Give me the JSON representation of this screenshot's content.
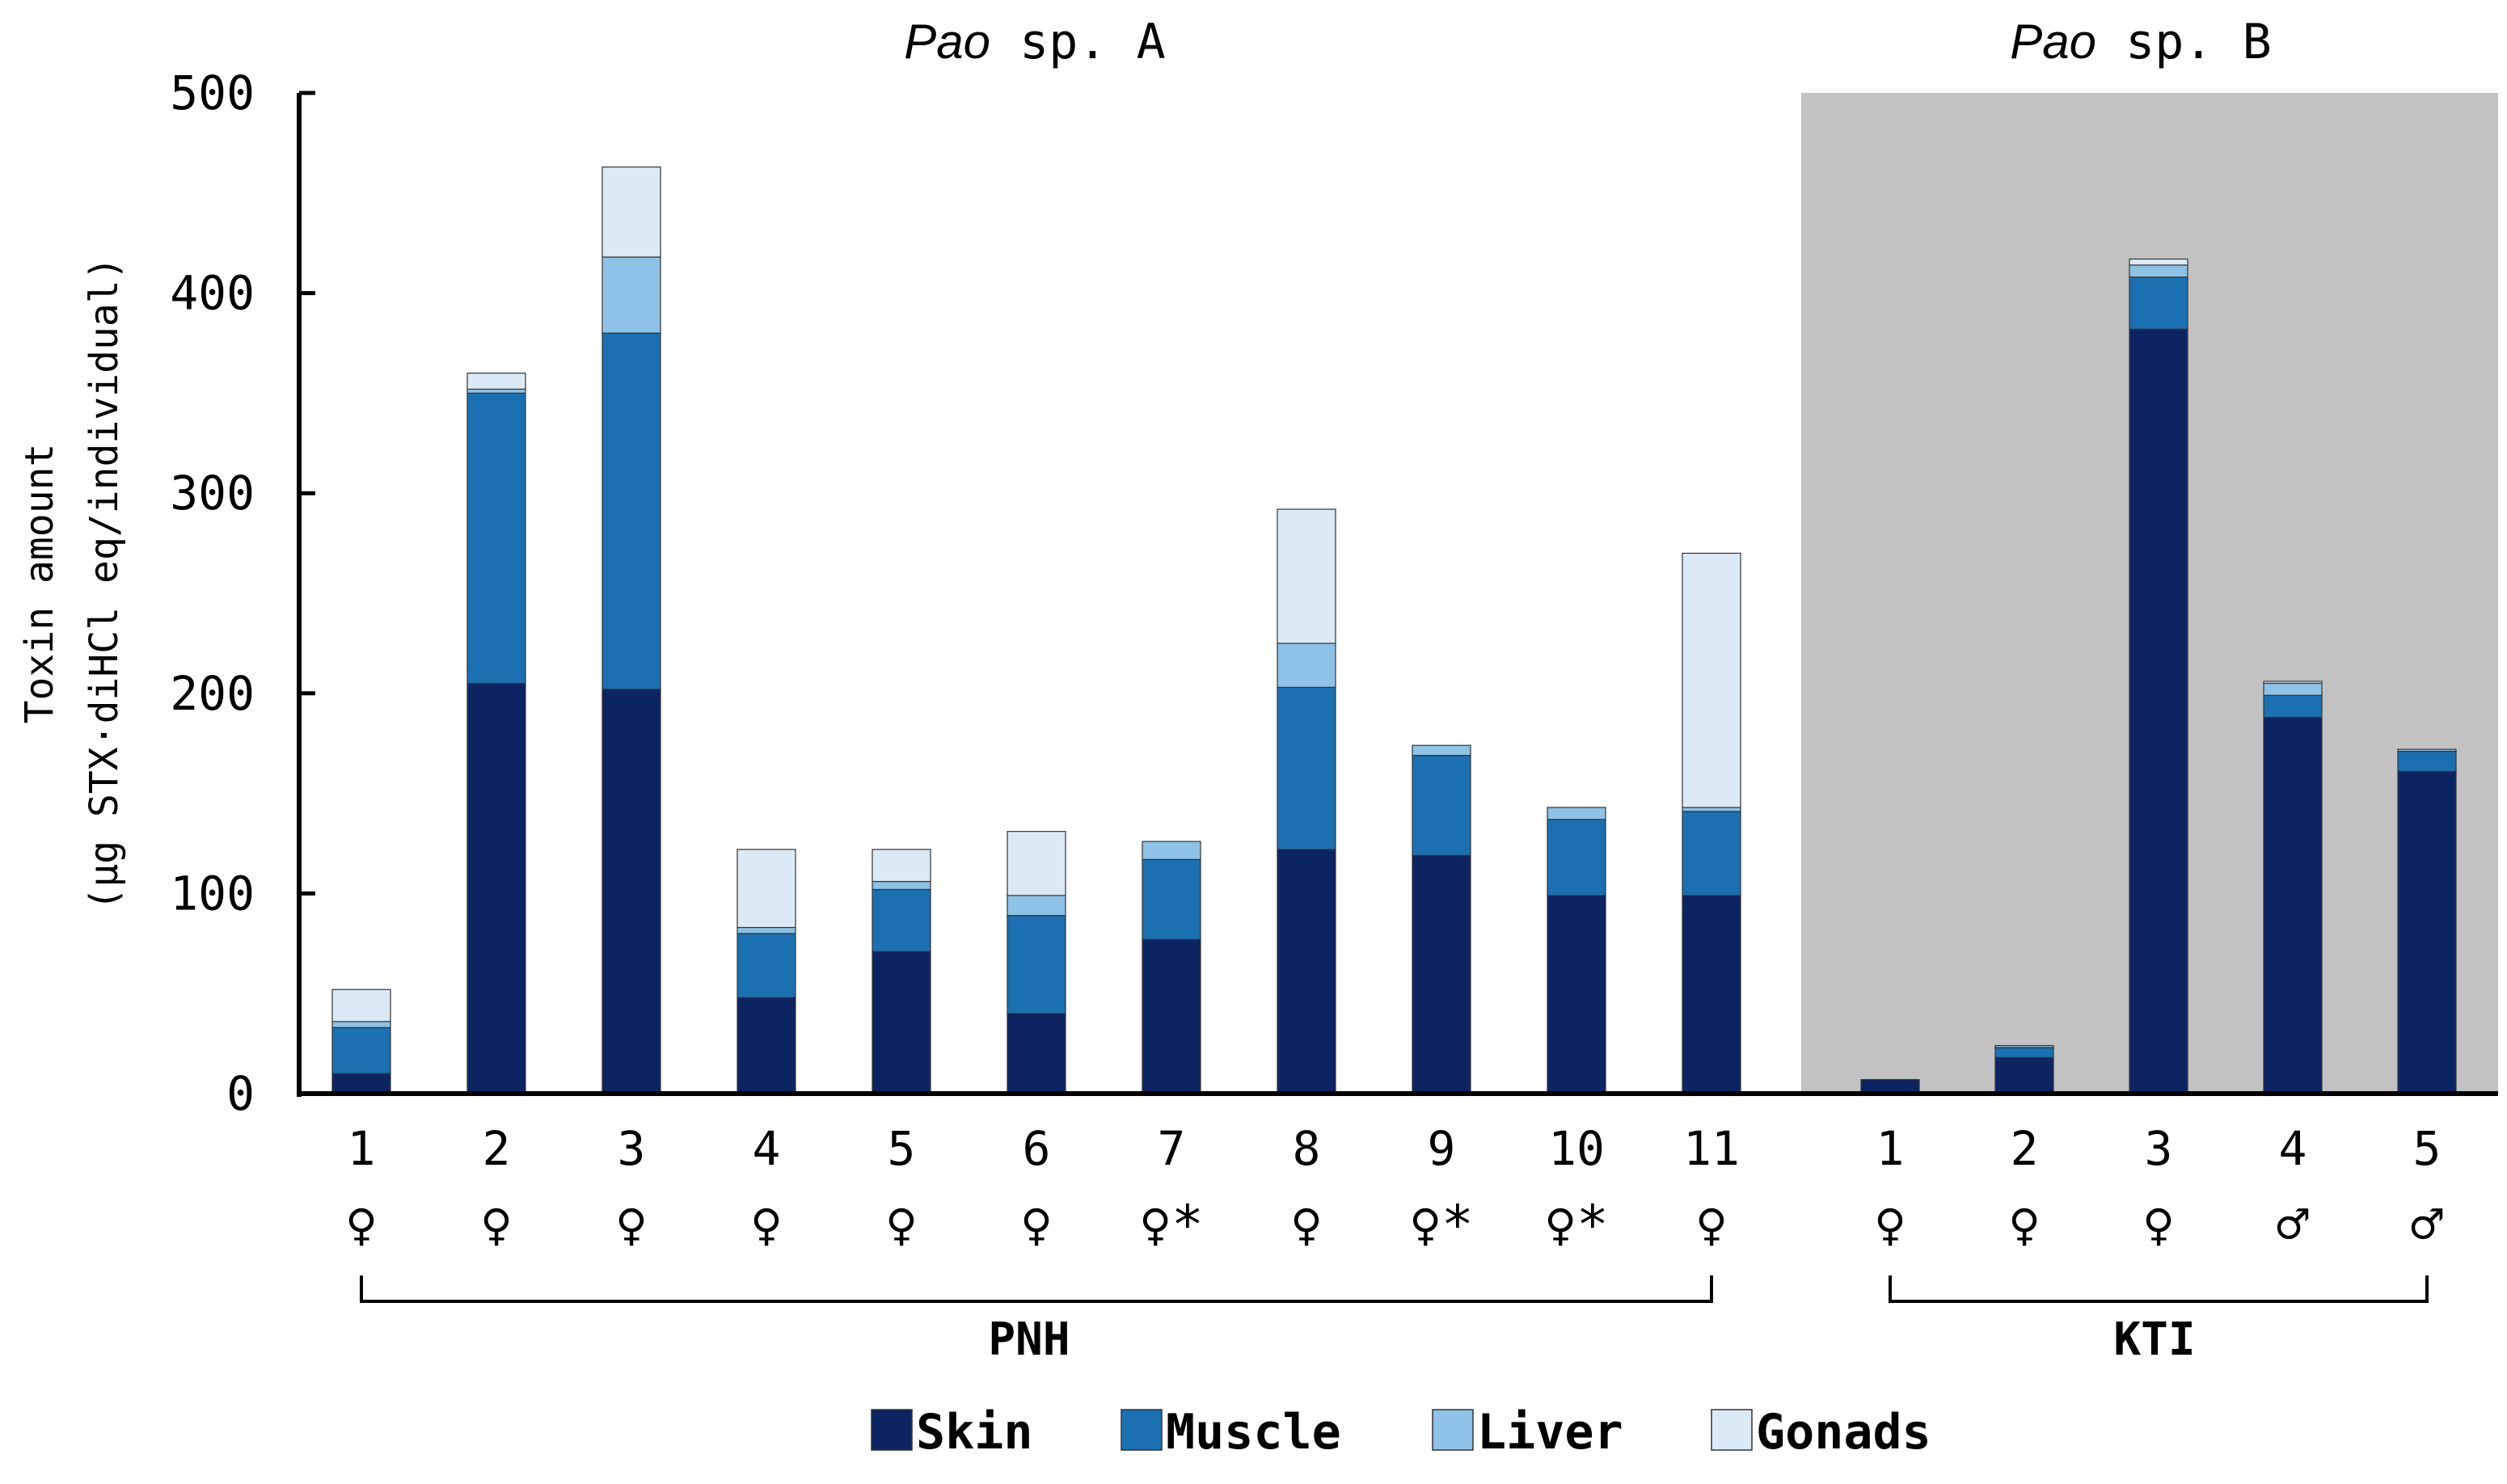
{
  "chart_data": {
    "type": "bar",
    "stacked": true,
    "ylabel_line1": "Toxin amount",
    "ylabel_line2": "(µg STX·diHCl eq/individual)",
    "ylim": [
      0,
      500
    ],
    "yticks": [
      0,
      100,
      200,
      300,
      400,
      500
    ],
    "legend_position": "bottom",
    "series": [
      {
        "name": "Skin",
        "color": "#0d2462"
      },
      {
        "name": "Muscle",
        "color": "#1b70b2"
      },
      {
        "name": "Liver",
        "color": "#8ec2e6"
      },
      {
        "name": "Gonads",
        "color": "#dceaf6"
      }
    ],
    "groups": [
      {
        "species_italic": "Pao",
        "species_rest": " sp. A",
        "location": "PNH",
        "shaded": false,
        "samples": [
          {
            "label": "1",
            "sex": "♀",
            "values": [
              10,
              23,
              3,
              16
            ]
          },
          {
            "label": "2",
            "sex": "♀",
            "values": [
              205,
              145,
              2,
              8
            ]
          },
          {
            "label": "3",
            "sex": "♀",
            "values": [
              202,
              178,
              38,
              45
            ]
          },
          {
            "label": "4",
            "sex": "♀",
            "values": [
              48,
              32,
              3,
              39
            ]
          },
          {
            "label": "5",
            "sex": "♀",
            "values": [
              71,
              31,
              4,
              16
            ]
          },
          {
            "label": "6",
            "sex": "♀",
            "values": [
              40,
              49,
              10,
              32
            ]
          },
          {
            "label": "7",
            "sex": "♀*",
            "values": [
              77,
              40,
              9,
              0
            ]
          },
          {
            "label": "8",
            "sex": "♀",
            "values": [
              122,
              81,
              22,
              67
            ]
          },
          {
            "label": "9",
            "sex": "♀*",
            "values": [
              119,
              50,
              5,
              0
            ]
          },
          {
            "label": "10",
            "sex": "♀*",
            "values": [
              99,
              38,
              6,
              0
            ]
          },
          {
            "label": "11",
            "sex": "♀",
            "values": [
              99,
              42,
              2,
              127
            ]
          }
        ]
      },
      {
        "species_italic": "Pao",
        "species_rest": " sp. B",
        "location": "KTI",
        "shaded": true,
        "samples": [
          {
            "label": "1",
            "sex": "♀",
            "values": [
              7,
              0,
              0,
              0
            ]
          },
          {
            "label": "2",
            "sex": "♀",
            "values": [
              18,
              5,
              1,
              0
            ]
          },
          {
            "label": "3",
            "sex": "♀",
            "values": [
              382,
              26,
              6,
              3
            ]
          },
          {
            "label": "4",
            "sex": "♂",
            "values": [
              188,
              11,
              6,
              1
            ]
          },
          {
            "label": "5",
            "sex": "♂",
            "values": [
              161,
              10,
              1,
              0
            ]
          }
        ]
      }
    ]
  }
}
